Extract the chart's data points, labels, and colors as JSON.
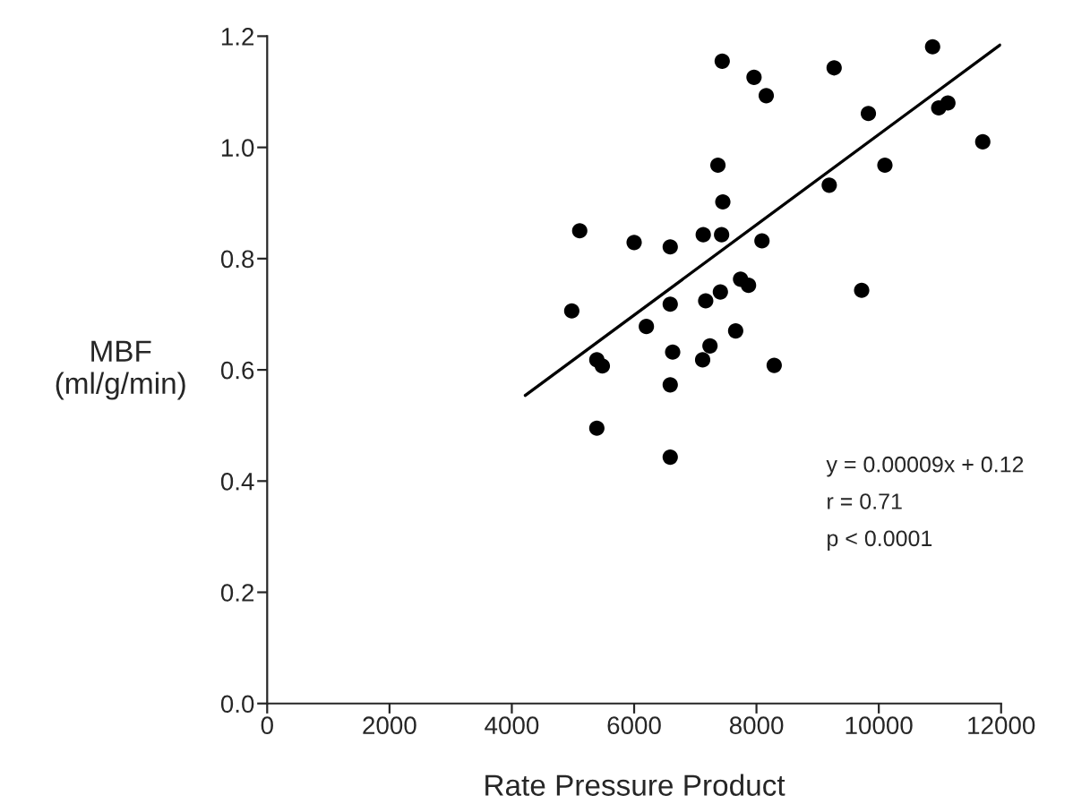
{
  "chart_data": {
    "type": "scatter",
    "xlabel": "Rate Pressure Product",
    "ylabel": "MBF\n(ml/g/min)",
    "xlim": [
      0,
      12000
    ],
    "xticks": [
      0,
      2000,
      4000,
      6000,
      8000,
      10000,
      12000
    ],
    "ylim": [
      0,
      1.2
    ],
    "yticks": [
      {
        "value": 0,
        "label": "0.0"
      },
      {
        "value": 0.2,
        "label": "0.2"
      },
      {
        "value": 0.4,
        "label": "0.4"
      },
      {
        "value": 0.6,
        "label": "0.6"
      },
      {
        "value": 0.8,
        "label": "0.8"
      },
      {
        "value": 1.0,
        "label": "1.0"
      },
      {
        "value": 1.2,
        "label": "1.2"
      }
    ],
    "grid": false,
    "legend": false,
    "series": [
      {
        "type": "scatter",
        "color": "#000000",
        "marker": "circle",
        "x": [
          7440,
          7960,
          8160,
          9270,
          10880,
          9830,
          10980,
          11130,
          11700,
          7370,
          10100,
          9190,
          7450,
          5110,
          6000,
          6590,
          7130,
          7430,
          8090,
          7740,
          7870,
          4980,
          6590,
          7170,
          7410,
          9720,
          6200,
          7660,
          6630,
          7240,
          7120,
          5390,
          5480,
          8290,
          5390,
          6590,
          6590
        ],
        "values": [
          1.155,
          1.126,
          1.093,
          1.143,
          1.181,
          1.061,
          1.071,
          1.08,
          1.01,
          0.968,
          0.968,
          0.932,
          0.902,
          0.85,
          0.829,
          0.821,
          0.843,
          0.843,
          0.832,
          0.763,
          0.752,
          0.706,
          0.718,
          0.724,
          0.74,
          0.743,
          0.678,
          0.67,
          0.632,
          0.643,
          0.618,
          0.618,
          0.607,
          0.608,
          0.495,
          0.443,
          0.573
        ]
      },
      {
        "type": "line",
        "color": "#000000",
        "x": [
          4220,
          11980
        ],
        "values": [
          0.554,
          1.184
        ],
        "line_style": "solid"
      }
    ],
    "annotations": [
      {
        "text": "y = 0.00009x + 0.12"
      },
      {
        "text": "r = 0.71"
      },
      {
        "text": "p < 0.0001"
      }
    ]
  }
}
